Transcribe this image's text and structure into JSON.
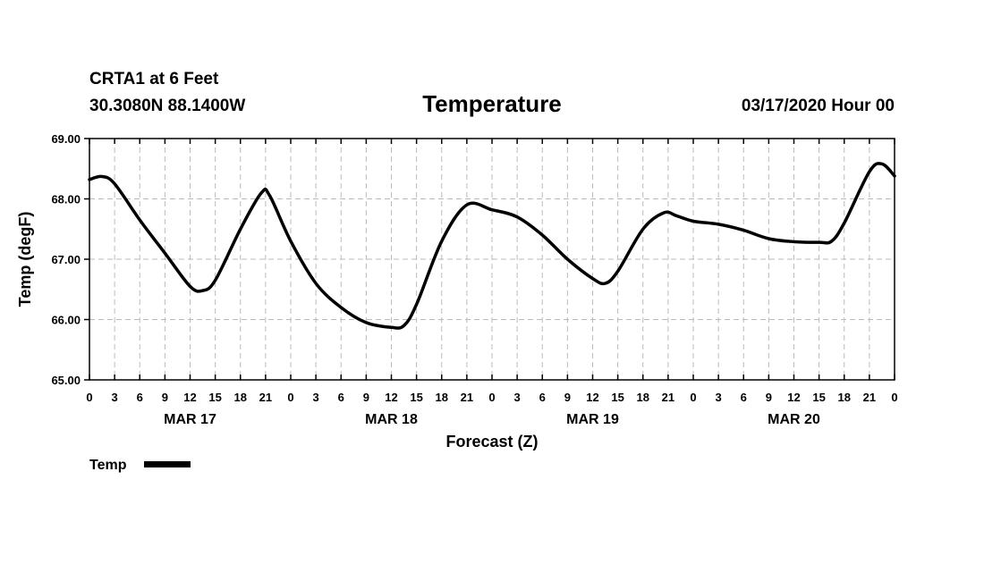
{
  "header": {
    "station": "CRTA1 at 6 Feet",
    "coords": "30.3080N 88.1400W",
    "title": "Temperature",
    "run": "03/17/2020 Hour 00"
  },
  "chart_data": {
    "type": "line",
    "title": "Temperature",
    "xlabel": "Forecast (Z)",
    "ylabel": "Temp (degF)",
    "xlim": [
      0,
      96
    ],
    "ylim": [
      65,
      69
    ],
    "y_ticks": [
      65,
      66,
      67,
      68,
      69
    ],
    "y_tick_labels": [
      "65.00",
      "66.00",
      "67.00",
      "68.00",
      "69.00"
    ],
    "x_ticks": [
      0,
      3,
      6,
      9,
      12,
      15,
      18,
      21,
      24,
      27,
      30,
      33,
      36,
      39,
      42,
      45,
      48,
      51,
      54,
      57,
      60,
      63,
      66,
      69,
      72,
      75,
      78,
      81,
      84,
      87,
      90,
      93,
      96
    ],
    "x_tick_labels": [
      "0",
      "3",
      "6",
      "9",
      "12",
      "15",
      "18",
      "21",
      "0",
      "3",
      "6",
      "9",
      "12",
      "15",
      "18",
      "21",
      "0",
      "3",
      "6",
      "9",
      "12",
      "15",
      "18",
      "21",
      "0",
      "3",
      "6",
      "9",
      "12",
      "15",
      "18",
      "21",
      "0"
    ],
    "day_labels": [
      {
        "label": "MAR 17",
        "hour": 12
      },
      {
        "label": "MAR 18",
        "hour": 36
      },
      {
        "label": "MAR 19",
        "hour": 60
      },
      {
        "label": "MAR 20",
        "hour": 84
      }
    ],
    "grid": true,
    "legend": "bottom-left",
    "series": [
      {
        "name": "Temp",
        "color": "#000000",
        "x": [
          0,
          1.5,
          3,
          6,
          9,
          12,
          13.5,
          15,
          18,
          20.5,
          21.5,
          24,
          27,
          30,
          33,
          36,
          37.5,
          39,
          42,
          45,
          48,
          51,
          54,
          57,
          60,
          61.5,
          63,
          66,
          68.5,
          70,
          72,
          75,
          78,
          81,
          84,
          87,
          88.5,
          90,
          93,
          94.5,
          96
        ],
        "values": [
          68.32,
          68.37,
          68.25,
          67.65,
          67.1,
          66.55,
          66.48,
          66.65,
          67.5,
          68.1,
          68.05,
          67.3,
          66.6,
          66.2,
          65.95,
          65.87,
          65.9,
          66.25,
          67.3,
          67.9,
          67.82,
          67.7,
          67.4,
          67.0,
          66.68,
          66.6,
          66.8,
          67.5,
          67.77,
          67.72,
          67.63,
          67.58,
          67.48,
          67.34,
          67.29,
          67.28,
          67.3,
          67.6,
          68.45,
          68.58,
          68.38
        ]
      }
    ]
  }
}
